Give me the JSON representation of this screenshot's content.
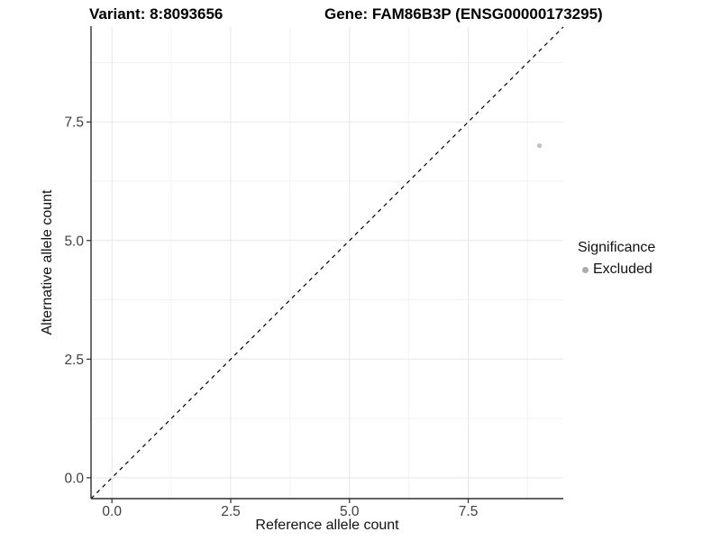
{
  "titles": {
    "variant": "Variant: 8:8093656",
    "gene": "Gene: FAM86B3P (ENSG00000173295)"
  },
  "chart_data": {
    "type": "scatter",
    "xlabel": "Reference allele count",
    "ylabel": "Alternative allele count",
    "xlim": [
      -0.44,
      9.5
    ],
    "ylim": [
      -0.44,
      9.5
    ],
    "x_ticks": {
      "values": [
        0,
        2.5,
        5,
        7.5
      ],
      "labels": [
        "0.0",
        "2.5",
        "5.0",
        "7.5"
      ]
    },
    "y_ticks": {
      "values": [
        0,
        2.5,
        5,
        7.5
      ],
      "labels": [
        "0.0",
        "2.5",
        "5.0",
        "7.5"
      ]
    },
    "x_minor": [
      1.25,
      3.75,
      6.25,
      8.75
    ],
    "y_minor": [
      1.25,
      3.75,
      6.25,
      8.75
    ],
    "grid": true,
    "points": [
      {
        "x": 9,
        "y": 7,
        "series": "Excluded",
        "color": "#c0c0c0"
      }
    ],
    "identity_line": {
      "style": "dashed",
      "color": "#000000",
      "slope": 1,
      "intercept": 0
    },
    "legend": {
      "title": "Significance",
      "position": "right",
      "items": [
        {
          "label": "Excluded",
          "color": "#ababab"
        }
      ]
    }
  },
  "colors": {
    "axis": "#2e2e2e",
    "tick": "#2e2e2e",
    "tick_label": "#404040",
    "grid_major": "#e7e7e7",
    "grid_minor": "#f2f2f2",
    "point": "#c0c0c0",
    "identity_line": "#000000"
  }
}
